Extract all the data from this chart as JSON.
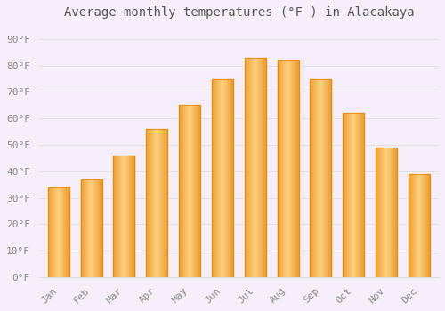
{
  "title": "Average monthly temperatures (°F ) in Alacakaya",
  "months": [
    "Jan",
    "Feb",
    "Mar",
    "Apr",
    "May",
    "Jun",
    "Jul",
    "Aug",
    "Sep",
    "Oct",
    "Nov",
    "Dec"
  ],
  "values": [
    34,
    37,
    46,
    56,
    65,
    75,
    83,
    82,
    75,
    62,
    49,
    39
  ],
  "bar_color_main": "#FFA826",
  "bar_color_light": "#FFD080",
  "bar_color_dark": "#E08000",
  "background_color": "#F5EEF8",
  "plot_bg_color": "#F5EEF8",
  "grid_color": "#DDDDDD",
  "ylabel_ticks": [
    0,
    10,
    20,
    30,
    40,
    50,
    60,
    70,
    80,
    90
  ],
  "ylim": [
    0,
    95
  ],
  "title_fontsize": 10,
  "tick_fontsize": 8,
  "tick_color": "#888888",
  "title_color": "#555555",
  "font_family": "monospace"
}
